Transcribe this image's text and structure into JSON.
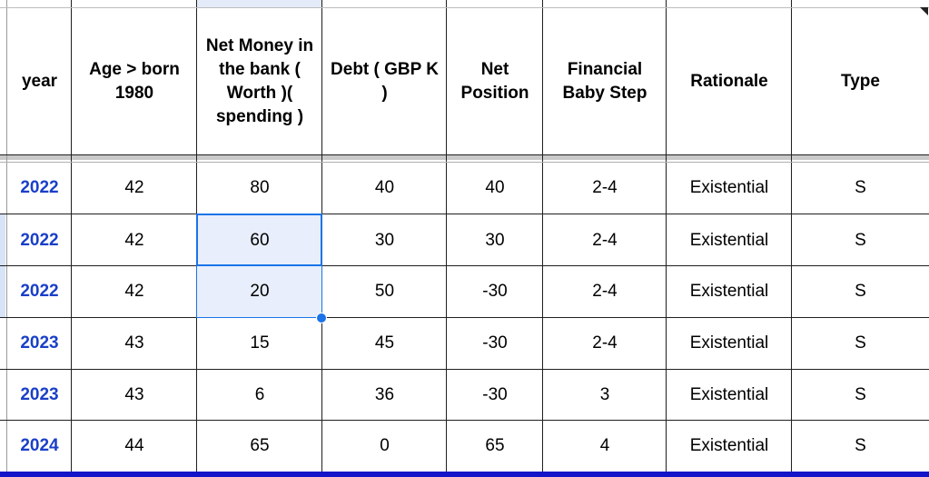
{
  "columns": [
    {
      "key": "year",
      "header": "year"
    },
    {
      "key": "age",
      "header": "Age > born 1980"
    },
    {
      "key": "net_money",
      "header": "Net Money in the bank ( Worth )( spending )"
    },
    {
      "key": "debt",
      "header": "Debt ( GBP K )"
    },
    {
      "key": "net_position",
      "header": "Net Position"
    },
    {
      "key": "baby_step",
      "header": "Financial Baby Step"
    },
    {
      "key": "rationale",
      "header": "Rationale"
    },
    {
      "key": "type",
      "header": "Type"
    }
  ],
  "rows": [
    {
      "year": "2022",
      "age": "42",
      "net_money": "80",
      "debt": "40",
      "net_position": "40",
      "baby_step": "2-4",
      "rationale": "Existential",
      "type": "S"
    },
    {
      "year": "2022",
      "age": "42",
      "net_money": "60",
      "debt": "30",
      "net_position": "30",
      "baby_step": "2-4",
      "rationale": "Existential",
      "type": "S"
    },
    {
      "year": "2022",
      "age": "42",
      "net_money": "20",
      "debt": "50",
      "net_position": "-30",
      "baby_step": "2-4",
      "rationale": "Existential",
      "type": "S"
    },
    {
      "year": "2023",
      "age": "43",
      "net_money": "15",
      "debt": "45",
      "net_position": "-30",
      "baby_step": "2-4",
      "rationale": "Existential",
      "type": "S"
    },
    {
      "year": "2023",
      "age": "43",
      "net_money": "6",
      "debt": "36",
      "net_position": "-30",
      "baby_step": "3",
      "rationale": "Existential",
      "type": "S"
    },
    {
      "year": "2024",
      "age": "44",
      "net_money": "65",
      "debt": "0",
      "net_position": "65",
      "baby_step": "4",
      "rationale": "Existential",
      "type": "S"
    }
  ],
  "selection": {
    "active_cell": "60",
    "range": [
      "60",
      "20"
    ]
  },
  "colors": {
    "year_text": "#1a3fc8",
    "selection": "#1a73e8",
    "selection_fill": "#e8eefb",
    "bottom_bar": "#1414c8"
  }
}
